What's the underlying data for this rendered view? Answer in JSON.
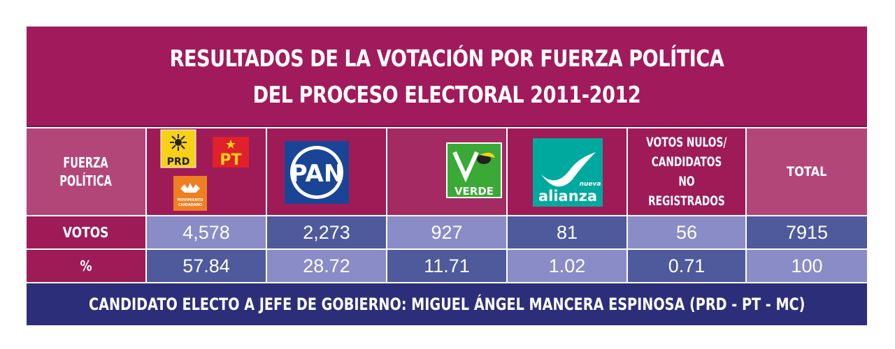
{
  "title": {
    "line1": "RESULTADOS DE LA VOTACIÓN POR FUERZA POLÍTICA",
    "line2": "DEL PROCESO ELECTORAL 2011-2012"
  },
  "header": {
    "fuerza_line1": "FUERZA",
    "fuerza_line2": "POLÍTICA",
    "nulos_line1": "VOTOS NULOS/",
    "nulos_line2": "CANDIDATOS NO",
    "nulos_line3": "REGISTRADOS",
    "total": "TOTAL"
  },
  "logos": {
    "prd_text": "PRD",
    "pt_text": "PT",
    "mc_text_line1": "MOVIMIENTO",
    "mc_text_line2": "CIUDADANO",
    "pan_text": "PAN",
    "verde_text": "VERDE",
    "alianza_text": "alianza",
    "nueva_text": "nueva"
  },
  "rows": {
    "votos_label": "VOTOS",
    "pct_label": "%",
    "votos": [
      "4,578",
      "2,273",
      "927",
      "81",
      "56",
      "7915"
    ],
    "pct": [
      "57.84",
      "28.72",
      "11.71",
      "1.02",
      "0.71",
      "100"
    ]
  },
  "footer": "CANDIDATO ELECTO A JEFE DE GOBIERNO: MIGUEL ÁNGEL MANCERA ESPINOSA (PRD - PT - MC)",
  "colors": {
    "title_bg": "#a11a5c",
    "label_bg": "#b34679",
    "cell_light": "#8a8cc7",
    "cell_dark": "#4f5a9c",
    "footer_bg": "#2d2e7a"
  }
}
